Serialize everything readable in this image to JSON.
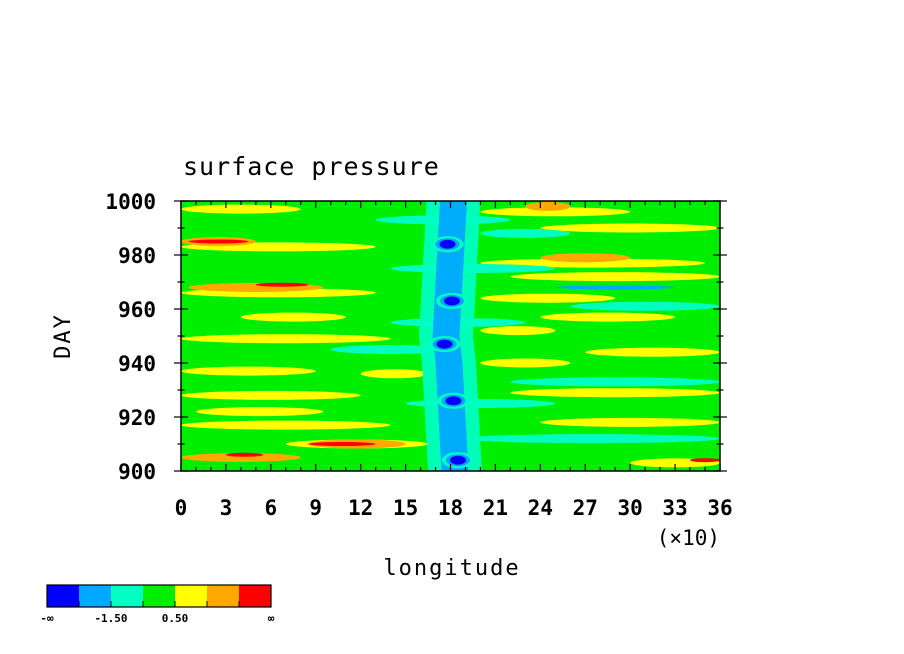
{
  "chart_data": {
    "type": "heatmap",
    "title": "surface pressure",
    "xlabel": "longitude",
    "ylabel": "DAY",
    "x_tick_labels": [
      "0",
      "3",
      "6",
      "9",
      "12",
      "15",
      "18",
      "21",
      "24",
      "27",
      "30",
      "33",
      "36"
    ],
    "x_multiplier_label": "(×10)",
    "y_tick_labels": [
      "900",
      "920",
      "940",
      "960",
      "980",
      "1000"
    ],
    "xlim": [
      0,
      360
    ],
    "ylim": [
      900,
      1000
    ],
    "grid": false,
    "colorbar": {
      "colors": [
        "#0000ff",
        "#00a8ff",
        "#00ffc0",
        "#00ee00",
        "#ffff00",
        "#ffa800",
        "#ff0000"
      ],
      "labels": [
        "-∞",
        "-1.50",
        "0.50",
        "∞"
      ]
    },
    "background_level": 3,
    "trough": {
      "x_center": [
        183,
        181,
        179,
        177,
        178,
        180,
        182
      ],
      "y_points": [
        900,
        920,
        940,
        950,
        960,
        980,
        1000
      ],
      "cores": [
        {
          "x": 185,
          "y": 904,
          "level": 0
        },
        {
          "x": 182,
          "y": 926,
          "level": 0
        },
        {
          "x": 176,
          "y": 947,
          "level": 0
        },
        {
          "x": 181,
          "y": 963,
          "level": 0
        },
        {
          "x": 178,
          "y": 984,
          "level": 0
        }
      ]
    },
    "bands": [
      {
        "y": 905,
        "x0": 0,
        "x1": 80,
        "level": 5
      },
      {
        "y": 906,
        "x0": 30,
        "x1": 55,
        "level": 6
      },
      {
        "y": 910,
        "x0": 70,
        "x1": 165,
        "level": 4
      },
      {
        "y": 910,
        "x0": 85,
        "x1": 150,
        "level": 5
      },
      {
        "y": 910,
        "x0": 85,
        "x1": 130,
        "level": 6
      },
      {
        "y": 903,
        "x0": 300,
        "x1": 360,
        "level": 4
      },
      {
        "y": 904,
        "x0": 340,
        "x1": 360,
        "level": 6
      },
      {
        "y": 917,
        "x0": 0,
        "x1": 140,
        "level": 4
      },
      {
        "y": 918,
        "x0": 240,
        "x1": 360,
        "level": 4
      },
      {
        "y": 922,
        "x0": 10,
        "x1": 95,
        "level": 4
      },
      {
        "y": 928,
        "x0": 0,
        "x1": 120,
        "level": 4
      },
      {
        "y": 929,
        "x0": 220,
        "x1": 360,
        "level": 4
      },
      {
        "y": 936,
        "x0": 120,
        "x1": 165,
        "level": 4
      },
      {
        "y": 937,
        "x0": 0,
        "x1": 90,
        "level": 4
      },
      {
        "y": 940,
        "x0": 200,
        "x1": 260,
        "level": 4
      },
      {
        "y": 944,
        "x0": 270,
        "x1": 360,
        "level": 4
      },
      {
        "y": 949,
        "x0": 0,
        "x1": 140,
        "level": 4
      },
      {
        "y": 952,
        "x0": 200,
        "x1": 250,
        "level": 4
      },
      {
        "y": 957,
        "x0": 240,
        "x1": 330,
        "level": 4
      },
      {
        "y": 957,
        "x0": 40,
        "x1": 110,
        "level": 4
      },
      {
        "y": 964,
        "x0": 200,
        "x1": 290,
        "level": 4
      },
      {
        "y": 966,
        "x0": 0,
        "x1": 130,
        "level": 4
      },
      {
        "y": 968,
        "x0": 5,
        "x1": 95,
        "level": 5
      },
      {
        "y": 969,
        "x0": 50,
        "x1": 85,
        "level": 6
      },
      {
        "y": 972,
        "x0": 220,
        "x1": 360,
        "level": 4
      },
      {
        "y": 977,
        "x0": 200,
        "x1": 350,
        "level": 4
      },
      {
        "y": 979,
        "x0": 240,
        "x1": 300,
        "level": 5
      },
      {
        "y": 983,
        "x0": 0,
        "x1": 130,
        "level": 4
      },
      {
        "y": 985,
        "x0": 0,
        "x1": 50,
        "level": 5
      },
      {
        "y": 985,
        "x0": 5,
        "x1": 45,
        "level": 6
      },
      {
        "y": 990,
        "x0": 240,
        "x1": 360,
        "level": 4
      },
      {
        "y": 996,
        "x0": 200,
        "x1": 300,
        "level": 4
      },
      {
        "y": 998,
        "x0": 230,
        "x1": 260,
        "level": 5
      },
      {
        "y": 997,
        "x0": 0,
        "x1": 80,
        "level": 4
      },
      {
        "y": 912,
        "x0": 190,
        "x1": 360,
        "level": 2
      },
      {
        "y": 925,
        "x0": 150,
        "x1": 250,
        "level": 2
      },
      {
        "y": 933,
        "x0": 220,
        "x1": 360,
        "level": 2
      },
      {
        "y": 945,
        "x0": 100,
        "x1": 180,
        "level": 2
      },
      {
        "y": 955,
        "x0": 140,
        "x1": 230,
        "level": 2
      },
      {
        "y": 961,
        "x0": 260,
        "x1": 360,
        "level": 2
      },
      {
        "y": 975,
        "x0": 140,
        "x1": 250,
        "level": 2
      },
      {
        "y": 968,
        "x0": 250,
        "x1": 330,
        "level": 1
      },
      {
        "y": 988,
        "x0": 200,
        "x1": 260,
        "level": 2
      },
      {
        "y": 993,
        "x0": 130,
        "x1": 220,
        "level": 2
      }
    ]
  }
}
